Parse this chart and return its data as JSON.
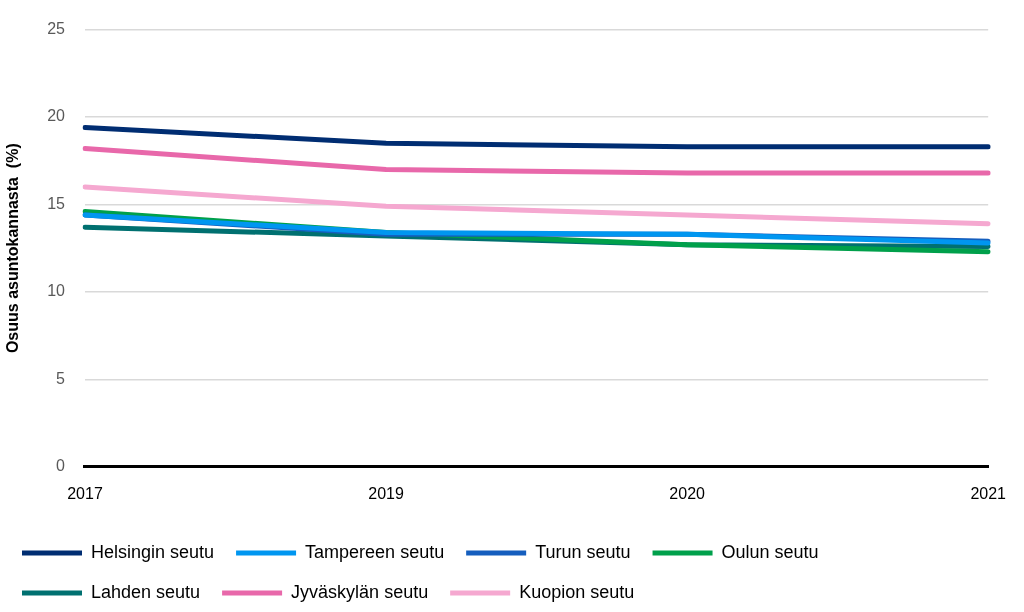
{
  "chart_data": {
    "type": "line",
    "ylabel": "Osuus asuntokannasta  (%)",
    "categories": [
      "2017",
      "2019",
      "2020",
      "2021"
    ],
    "ylim": [
      0,
      25
    ],
    "yticks": [
      0,
      5,
      10,
      15,
      20,
      25
    ],
    "grid": "y",
    "legend": "bottom",
    "marker": "none",
    "line_style": "solid",
    "series": [
      {
        "name": "Helsingin seutu",
        "color": "#002d72",
        "values": [
          19.4,
          18.5,
          18.3,
          18.3
        ]
      },
      {
        "name": "Tampereen seutu",
        "color": "#0096f0",
        "values": [
          14.4,
          13.4,
          13.3,
          12.8
        ]
      },
      {
        "name": "Turun seutu",
        "color": "#155ebe",
        "values": [
          14.4,
          13.3,
          13.3,
          12.9
        ]
      },
      {
        "name": "Oulun seutu",
        "color": "#00a04b",
        "values": [
          14.6,
          13.4,
          12.7,
          12.3
        ]
      },
      {
        "name": "Lahden seutu",
        "color": "#007070",
        "values": [
          13.7,
          13.2,
          12.7,
          12.6
        ]
      },
      {
        "name": "Jyväskylän seutu",
        "color": "#e868aa",
        "values": [
          18.2,
          17.0,
          16.8,
          16.8
        ]
      },
      {
        "name": "Kuopion seutu",
        "color": "#f5a8d0",
        "values": [
          16.0,
          14.9,
          14.4,
          13.9
        ]
      }
    ]
  }
}
